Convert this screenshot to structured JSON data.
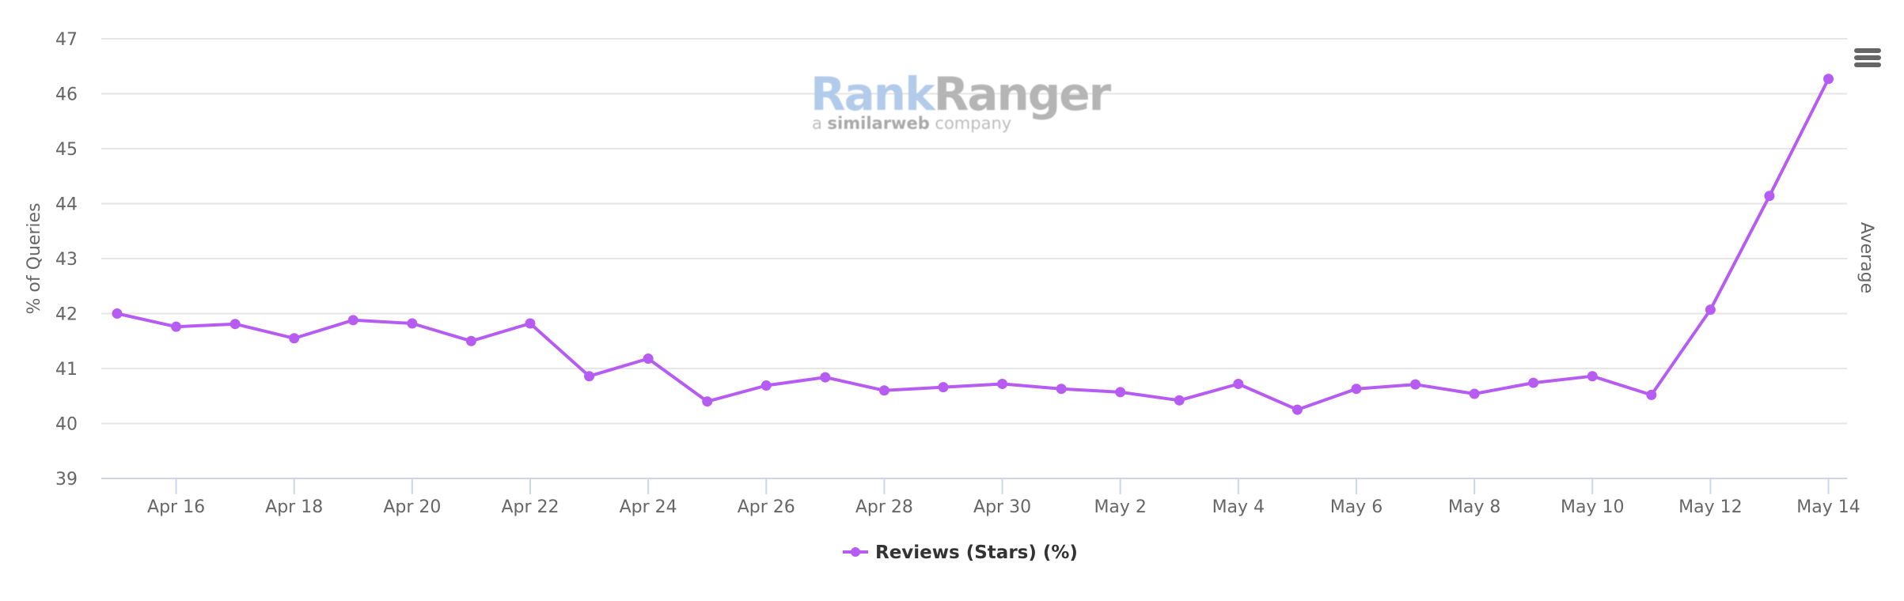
{
  "chart_data": {
    "type": "line",
    "title": "",
    "xlabel": "",
    "ylabel": "% of Queries",
    "right_axis_label": "Average",
    "ylim": [
      39,
      47
    ],
    "yticks": [
      39,
      40,
      41,
      42,
      43,
      44,
      45,
      46,
      47
    ],
    "grid": true,
    "legend_position": "bottom-center",
    "x": [
      "Apr 15",
      "Apr 16",
      "Apr 17",
      "Apr 18",
      "Apr 19",
      "Apr 20",
      "Apr 21",
      "Apr 22",
      "Apr 23",
      "Apr 24",
      "Apr 25",
      "Apr 26",
      "Apr 27",
      "Apr 28",
      "Apr 29",
      "Apr 30",
      "May 1",
      "May 2",
      "May 3",
      "May 4",
      "May 5",
      "May 6",
      "May 7",
      "May 8",
      "May 9",
      "May 10",
      "May 11",
      "May 12",
      "May 13",
      "May 14"
    ],
    "xtick_labels": [
      "Apr 16",
      "Apr 18",
      "Apr 20",
      "Apr 22",
      "Apr 24",
      "Apr 26",
      "Apr 28",
      "Apr 30",
      "May 2",
      "May 4",
      "May 6",
      "May 8",
      "May 10",
      "May 12",
      "May 14"
    ],
    "series": [
      {
        "name": "Reviews (Stars) (%)",
        "color": "#b65cf2",
        "values": [
          42.0,
          41.76,
          41.81,
          41.55,
          41.88,
          41.82,
          41.5,
          41.82,
          40.86,
          41.18,
          40.4,
          40.69,
          40.84,
          40.6,
          40.66,
          40.72,
          40.63,
          40.57,
          40.42,
          40.72,
          40.25,
          40.63,
          40.71,
          40.54,
          40.74,
          40.86,
          40.52,
          42.07,
          44.14,
          46.27
        ]
      }
    ]
  },
  "legend": {
    "items": [
      {
        "label": "Reviews (Stars) (%)",
        "color": "#b65cf2"
      }
    ]
  },
  "watermark": {
    "brand_part1": "Rank",
    "brand_part2": "Ranger",
    "tagline_prefix": "a ",
    "tagline_brand": "similarweb",
    "tagline_suffix": " company"
  },
  "toolbar": {
    "menu_icon": "hamburger-menu-icon"
  },
  "colors": {
    "series": "#b65cf2",
    "grid": "#e6e6e6",
    "axis": "#ccd6eb",
    "label": "#666666",
    "legend_text": "#333333"
  }
}
